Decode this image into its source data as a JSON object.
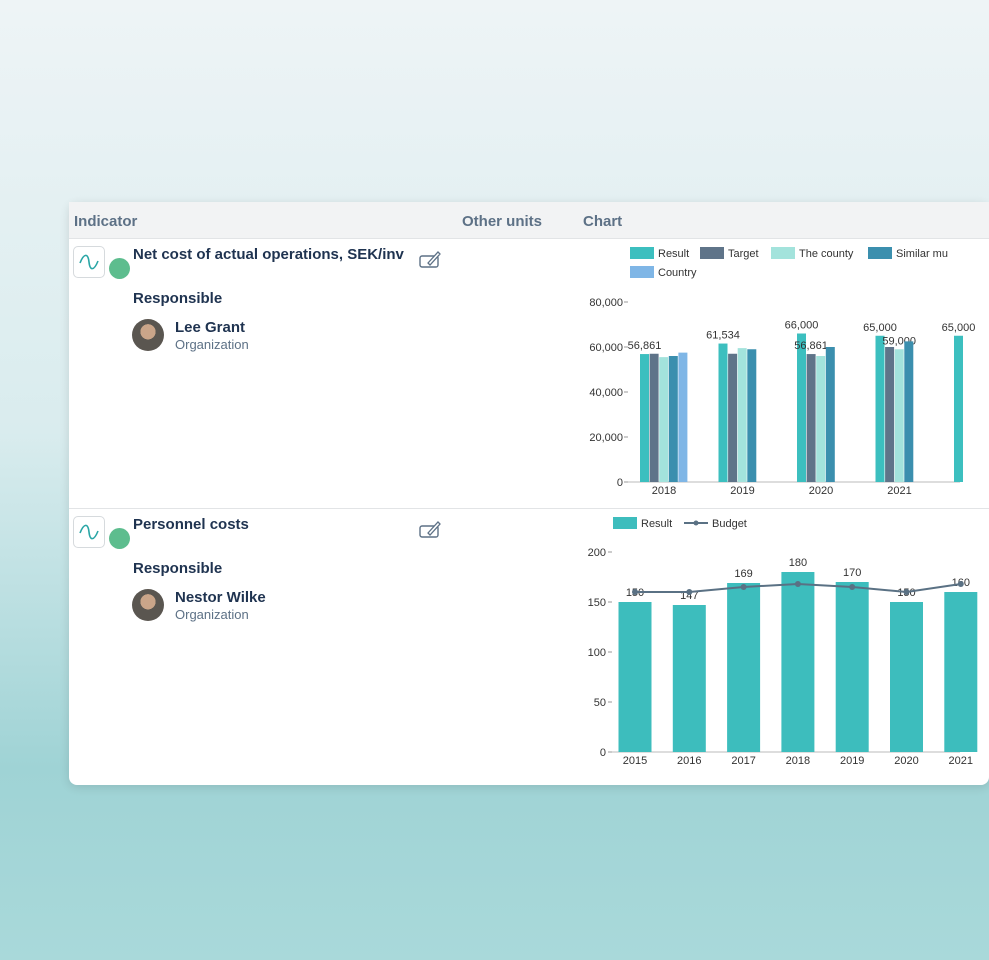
{
  "table": {
    "headers": [
      "Indicator",
      "Other units",
      "Chart"
    ]
  },
  "rows": [
    {
      "title": "Net cost of actual operations, SEK/inv",
      "responsible_label": "Responsible",
      "person": "Lee Grant",
      "organization": "Organization",
      "chart_data": {
        "type": "bar",
        "categories": [
          "2018",
          "2019",
          "2020",
          "2021",
          null
        ],
        "ylim": [
          0,
          80000
        ],
        "yticks": [
          0,
          {
            "value": 20000,
            "label": "20,000"
          },
          {
            "value": 40000,
            "label": "40,000"
          },
          {
            "value": 60000,
            "label": "60,000"
          },
          {
            "value": 80000,
            "label": "80,000"
          }
        ],
        "series": [
          {
            "name": "Result",
            "color": "#3cbfbf",
            "values": [
              56861,
              61534,
              66000,
              65000,
              65000
            ],
            "value_labels": [
              "56,861",
              "61,534",
              "66,000",
              "65,000",
              "65,000"
            ]
          },
          {
            "name": "Target",
            "color": "#5f7489",
            "values": [
              57000,
              57000,
              56861,
              60000,
              null
            ],
            "value_labels": [
              null,
              null,
              "56,861",
              null,
              null
            ]
          },
          {
            "name": "The county",
            "color": "#a3e3dc",
            "values": [
              55500,
              59500,
              56000,
              59000,
              null
            ],
            "value_labels": [
              null,
              null,
              null,
              "59,000",
              null
            ]
          },
          {
            "name": "Similar mu",
            "color": "#3b8fae",
            "values": [
              56000,
              59000,
              60000,
              62500,
              null
            ]
          },
          {
            "name": "Country",
            "color": "#7fb6e6",
            "values": [
              57500,
              null,
              null,
              null,
              null
            ]
          }
        ]
      }
    },
    {
      "title": "Personnel costs",
      "responsible_label": "Responsible",
      "person": "Nestor Wilke",
      "organization": "Organization",
      "chart_data": {
        "type": "bar-line",
        "categories": [
          "2015",
          "2016",
          "2017",
          "2018",
          "2019",
          "2020",
          "2021"
        ],
        "ylim": [
          0,
          200
        ],
        "yticks": [
          0,
          50,
          100,
          150,
          200
        ],
        "series": [
          {
            "name": "Result",
            "color": "#3dbdbd",
            "values": [
              150,
              147,
              169,
              180,
              170,
              150,
              160
            ]
          },
          {
            "name": "Budget",
            "color": "#5a7184",
            "values": [
              160,
              160,
              165,
              168,
              165,
              160,
              168
            ]
          }
        ]
      }
    }
  ]
}
